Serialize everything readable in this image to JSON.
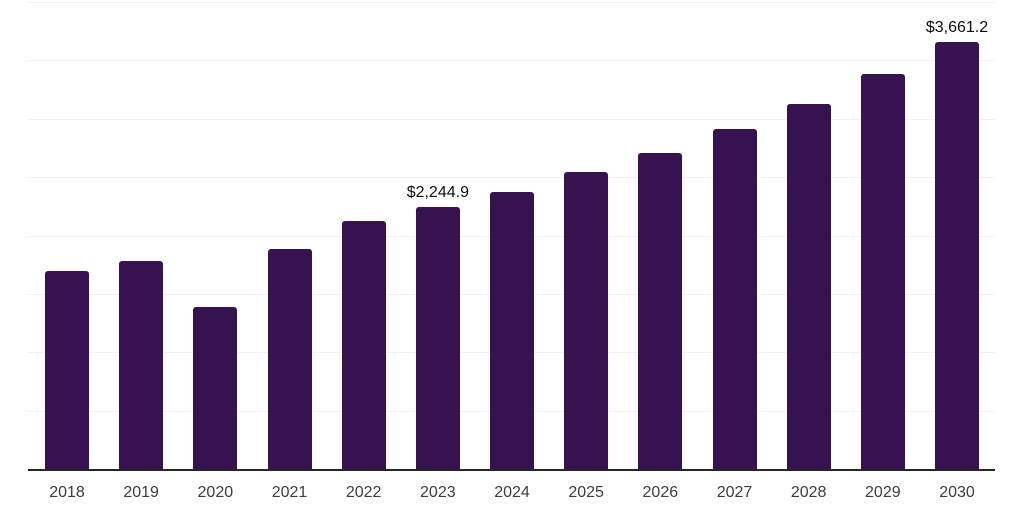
{
  "chart_data": {
    "type": "bar",
    "categories": [
      "2018",
      "2019",
      "2020",
      "2021",
      "2022",
      "2023",
      "2024",
      "2025",
      "2026",
      "2027",
      "2028",
      "2029",
      "2030"
    ],
    "values": [
      1700,
      1778,
      1391,
      1885,
      2126,
      2244.9,
      2377,
      2547,
      2711,
      2912,
      3124,
      3384,
      3661.2
    ],
    "point_labels": [
      "",
      "",
      "",
      "",
      "",
      "$2,244.9",
      "",
      "",
      "",
      "",
      "",
      "",
      "$3,661.2"
    ],
    "title": "",
    "xlabel": "",
    "ylabel": "",
    "ylim": [
      0,
      4000
    ],
    "gridline_step": 500,
    "grid": "horizontal",
    "legend": "none",
    "colors": {
      "bar": "#371250",
      "axis_line": "#262626",
      "gridline": "#f2f2f2",
      "value_label": "#0d0d0d",
      "tick_label": "#3d3d3d",
      "background": "#ffffff"
    }
  }
}
